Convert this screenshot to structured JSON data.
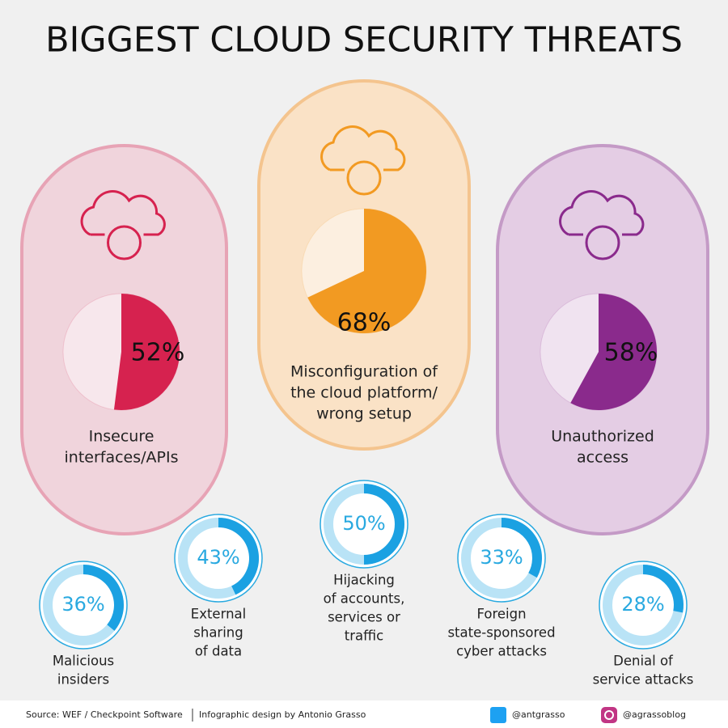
{
  "title": "BIGGEST CLOUD SECURITY THREATS",
  "cards": [
    {
      "value": 52,
      "value_label": "52%",
      "label": [
        "Insecure",
        "interfaces/APIs"
      ],
      "color": "#d6224f",
      "light": "#f0d4dc",
      "border": "#e7a3b5"
    },
    {
      "value": 68,
      "value_label": "68%",
      "label": [
        "Misconfiguration of",
        "the cloud platform/",
        "wrong setup"
      ],
      "color": "#f29a22",
      "light": "#fae2c6",
      "border": "#f4c48e"
    },
    {
      "value": 58,
      "value_label": "58%",
      "label": [
        "Unauthorized",
        "access"
      ],
      "color": "#8a2a8c",
      "light": "#e4cde4",
      "border": "#c49ac6"
    }
  ],
  "donuts": [
    {
      "value": 36,
      "value_label": "36%",
      "label": [
        "Malicious",
        "insiders"
      ]
    },
    {
      "value": 43,
      "value_label": "43%",
      "label": [
        "External",
        "sharing",
        "of data"
      ]
    },
    {
      "value": 50,
      "value_label": "50%",
      "label": [
        "Hijacking",
        "of accounts,",
        "services or",
        "traffic"
      ]
    },
    {
      "value": 33,
      "value_label": "33%",
      "label": [
        "Foreign",
        "state-sponsored",
        "cyber attacks"
      ]
    },
    {
      "value": 28,
      "value_label": "28%",
      "label": [
        "Denial of",
        "service attacks"
      ]
    }
  ],
  "footer": {
    "source": "Source: WEF / Checkpoint Software",
    "design": "Infographic design by Antonio Grasso",
    "twitter": "@antgrasso",
    "instagram": "@agrassoblog"
  }
}
